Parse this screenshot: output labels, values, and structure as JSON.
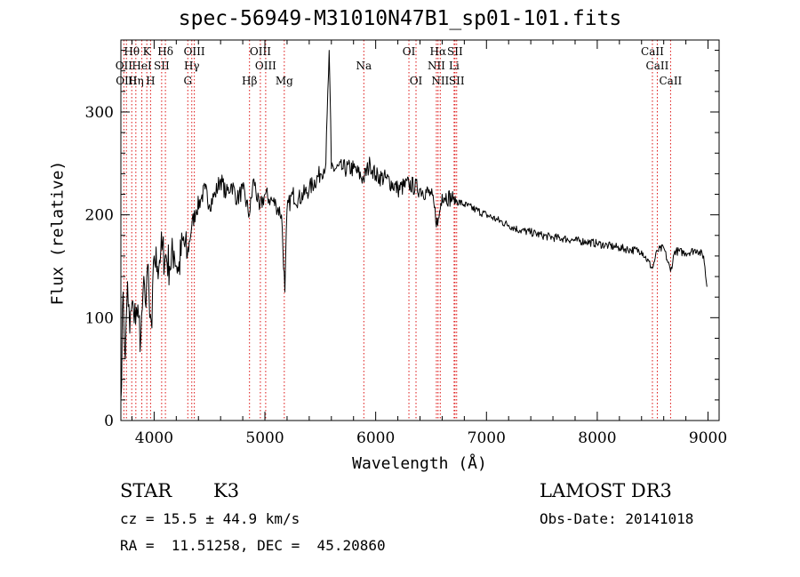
{
  "chart_data": {
    "type": "line",
    "title": "spec-56949-M31010N47B1_sp01-101.fits",
    "xlabel": "Wavelength (Å)",
    "ylabel": "Flux (relative)",
    "xlim": [
      3700,
      9100
    ],
    "ylim": [
      0,
      370
    ],
    "xticks": [
      4000,
      5000,
      6000,
      7000,
      8000,
      9000
    ],
    "yticks": [
      0,
      100,
      200,
      300
    ],
    "series": [
      {
        "name": "flux",
        "x": [
          3700,
          3720,
          3740,
          3760,
          3780,
          3800,
          3820,
          3840,
          3860,
          3880,
          3900,
          3920,
          3940,
          3960,
          3980,
          4000,
          4030,
          4060,
          4100,
          4140,
          4180,
          4220,
          4260,
          4300,
          4340,
          4380,
          4420,
          4460,
          4500,
          4550,
          4600,
          4650,
          4700,
          4750,
          4800,
          4860,
          4900,
          4950,
          5000,
          5050,
          5100,
          5150,
          5180,
          5200,
          5250,
          5300,
          5400,
          5500,
          5550,
          5580,
          5600,
          5700,
          5800,
          5890,
          5950,
          6000,
          6100,
          6200,
          6300,
          6400,
          6500,
          6560,
          6600,
          6700,
          6800,
          6900,
          7000,
          7100,
          7200,
          7300,
          7400,
          7500,
          7600,
          7700,
          7800,
          7900,
          8000,
          8100,
          8200,
          8300,
          8400,
          8498,
          8542,
          8600,
          8662,
          8700,
          8800,
          8900,
          8960,
          8990
        ],
        "y": [
          20,
          125,
          60,
          135,
          85,
          115,
          95,
          110,
          100,
          80,
          125,
          115,
          150,
          100,
          90,
          160,
          150,
          165,
          160,
          150,
          165,
          145,
          175,
          160,
          190,
          205,
          215,
          225,
          210,
          220,
          235,
          220,
          230,
          215,
          225,
          200,
          235,
          205,
          220,
          215,
          210,
          200,
          125,
          205,
          220,
          215,
          225,
          240,
          250,
          360,
          245,
          245,
          245,
          235,
          250,
          238,
          235,
          225,
          230,
          225,
          220,
          190,
          220,
          215,
          210,
          205,
          200,
          195,
          190,
          185,
          183,
          180,
          178,
          177,
          175,
          174,
          172,
          170,
          168,
          166,
          165,
          148,
          165,
          168,
          145,
          165,
          163,
          166,
          160,
          130
        ]
      }
    ],
    "line_labels": [
      {
        "text": "Hθ",
        "x": 3798,
        "row": 1
      },
      {
        "text": "K",
        "x": 3934,
        "row": 1
      },
      {
        "text": "Hδ",
        "x": 4102,
        "row": 1
      },
      {
        "text": "OIII",
        "x": 4363,
        "row": 1
      },
      {
        "text": "OIII",
        "x": 4959,
        "row": 1
      },
      {
        "text": "OI",
        "x": 6300,
        "row": 1
      },
      {
        "text": "Hα",
        "x": 6563,
        "row": 1
      },
      {
        "text": "SII",
        "x": 6716,
        "row": 1
      },
      {
        "text": "CaII",
        "x": 8498,
        "row": 1
      },
      {
        "text": "OII",
        "x": 3727,
        "row": 2
      },
      {
        "text": "HeI",
        "x": 3889,
        "row": 2
      },
      {
        "text": "SII",
        "x": 4068,
        "row": 2
      },
      {
        "text": "Hγ",
        "x": 4340,
        "row": 2
      },
      {
        "text": "OIII",
        "x": 5007,
        "row": 2
      },
      {
        "text": "Na",
        "x": 5893,
        "row": 2
      },
      {
        "text": "NII",
        "x": 6548,
        "row": 2
      },
      {
        "text": "Li",
        "x": 6708,
        "row": 2
      },
      {
        "text": "CaII",
        "x": 8542,
        "row": 2
      },
      {
        "text": "OIII",
        "x": 3750,
        "row": 3
      },
      {
        "text": "Hη",
        "x": 3835,
        "row": 3
      },
      {
        "text": "H",
        "x": 3968,
        "row": 3
      },
      {
        "text": "G",
        "x": 4304,
        "row": 3
      },
      {
        "text": "Hβ",
        "x": 4861,
        "row": 3
      },
      {
        "text": "Mg",
        "x": 5175,
        "row": 3
      },
      {
        "text": "OI",
        "x": 6364,
        "row": 3
      },
      {
        "text": "NII",
        "x": 6583,
        "row": 3
      },
      {
        "text": "SII",
        "x": 6731,
        "row": 3
      },
      {
        "text": "CaII",
        "x": 8662,
        "row": 3
      }
    ]
  },
  "info": {
    "class": "STAR",
    "subclass": "K3",
    "survey": "LAMOST DR3",
    "cz": "cz = 15.5 ± 44.9 km/s",
    "obs_date": "Obs-Date: 20141018",
    "radec": "RA =  11.51258, DEC =  45.20860"
  }
}
